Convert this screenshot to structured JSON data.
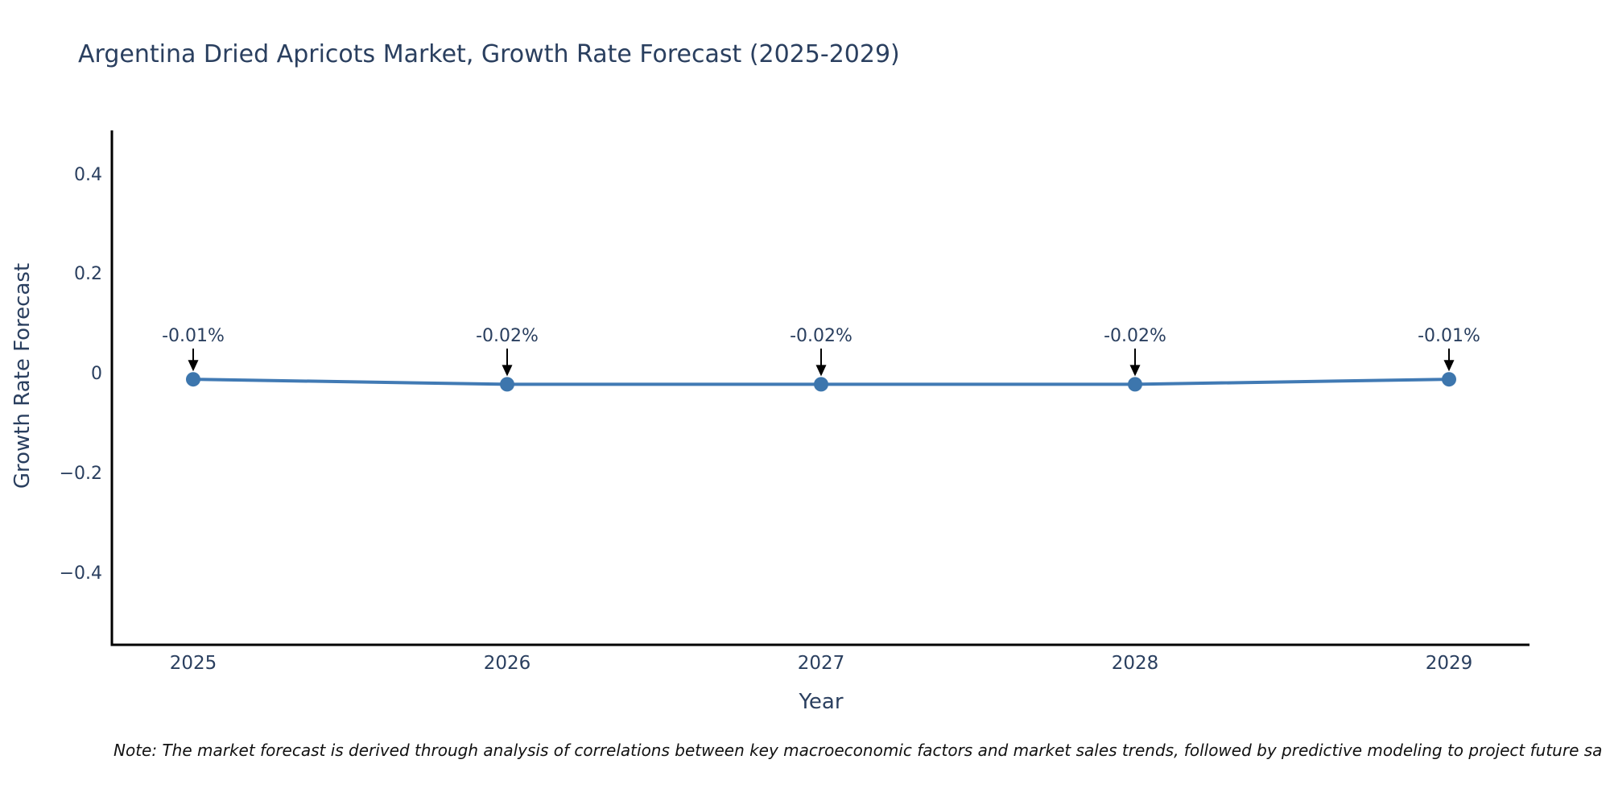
{
  "note": "Note: The market forecast is derived through analysis of correlations between key macroeconomic factors and market sales trends, followed by predictive modeling to project future sa",
  "chart_data": {
    "type": "line",
    "title": "Argentina Dried Apricots Market, Growth Rate Forecast (2025-2029)",
    "xlabel": "Year",
    "ylabel": "Growth Rate Forecast",
    "x": [
      2025,
      2026,
      2027,
      2028,
      2029
    ],
    "values": [
      -0.01,
      -0.02,
      -0.02,
      -0.02,
      -0.01
    ],
    "point_labels": [
      "-0.01%",
      "-0.02%",
      "-0.02%",
      "-0.02%",
      "-0.01%"
    ],
    "y_ticks": [
      0.4,
      0.2,
      0,
      -0.2,
      -0.4
    ],
    "y_tick_labels": [
      "0.4",
      "0.2",
      "0",
      "−0.2",
      "−0.4"
    ],
    "ylim": [
      -0.54,
      0.49
    ],
    "grid": false,
    "legend": false,
    "line_color": "#417ab4",
    "marker_color": "#3d76ad",
    "axis_color": "#000000",
    "arrow_color": "#000000",
    "text_color": "#2a3f5f"
  }
}
